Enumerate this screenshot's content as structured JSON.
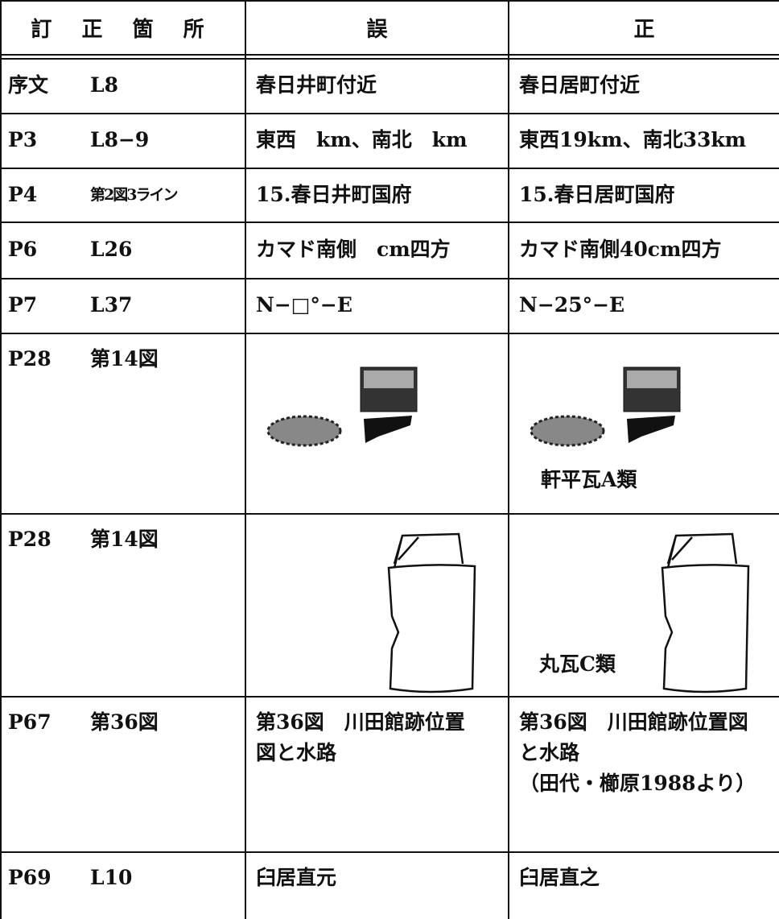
{
  "header": [
    "訂 正 箇 所",
    "誤",
    "正"
  ],
  "rows": [
    {
      "page": "序文",
      "location": "L8",
      "wrong": [
        "春日井町付近"
      ],
      "correct": [
        "春日居町付近"
      ]
    },
    {
      "page": "P3",
      "location": "L8−9",
      "wrong": [
        "東西　km、南北　km"
      ],
      "correct": [
        "東西19km、南北33km"
      ]
    },
    {
      "page": "P4",
      "location": "第2図3ライン",
      "wrong": [
        "15.春日井町国府"
      ],
      "correct": [
        "15.春日居町国府"
      ]
    },
    {
      "page": "P6",
      "location": "L26",
      "wrong": [
        "カマド南側　cm四方"
      ],
      "correct": [
        "カマド南側40cm四方"
      ]
    },
    {
      "page": "P7",
      "location": "L37",
      "wrong": [
        "N−□°−E"
      ],
      "correct": [
        "N−25°−E"
      ]
    },
    {
      "page": "P28",
      "location": "第14図",
      "caption": "軒平瓦A類"
    },
    {
      "page": "P28",
      "location": "第14図",
      "caption": "丸瓦C類"
    },
    {
      "page": "P67",
      "location": "第36図",
      "wrong": [
        "第36図　川田館跡位置",
        "図と水路"
      ],
      "correct": [
        "第36図　川田館跡位置図",
        "と水路",
        "（田代・櫛原1988より）"
      ]
    },
    {
      "page": "P69",
      "location": "L10",
      "wrong": [
        "臼居直元"
      ],
      "correct": [
        "臼居直之"
      ]
    }
  ]
}
